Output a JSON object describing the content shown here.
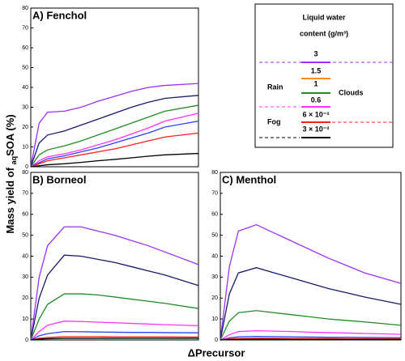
{
  "y_label": [
    "Mass yield of",
    "aq",
    "SOA (%)"
  ],
  "x_label": "ΔPrecursor",
  "legend": {
    "title": [
      "Liquid water",
      "content (g/m³)"
    ],
    "entries": [
      {
        "label": "3",
        "color": "#9b30ff"
      },
      {
        "label": "1.5",
        "color": "#ff8c1a"
      },
      {
        "label": "1",
        "color": "#228b22"
      },
      {
        "label": "0.6",
        "color": "#ff33ff"
      },
      {
        "label": "6 × 10⁻²",
        "color": "#ff2020"
      },
      {
        "label": "3 × 10⁻²",
        "color": "#000000"
      }
    ],
    "groups": [
      "Rain",
      "Clouds",
      "Fog"
    ]
  },
  "chart_data": [
    {
      "type": "line",
      "title": "A) Fenchol",
      "x": [
        0,
        0.05,
        0.1,
        0.2,
        0.3,
        0.4,
        0.5,
        0.6,
        0.7,
        0.8,
        1
      ],
      "xlim": [
        0,
        1
      ],
      "ylim": [
        0,
        80
      ],
      "yticks": [
        0,
        10,
        20,
        30,
        40,
        50,
        60,
        70,
        80
      ],
      "series": [
        {
          "color": "#9b30ff",
          "values": [
            0,
            22,
            27.5,
            28,
            30,
            33,
            35.5,
            38,
            40,
            41,
            42
          ]
        },
        {
          "color": "#1a1a6e",
          "values": [
            0,
            12,
            16,
            18,
            21,
            24,
            27,
            30,
            32.5,
            34.5,
            36
          ]
        },
        {
          "color": "#228b22",
          "values": [
            0,
            6,
            8.5,
            10.5,
            13,
            16,
            19,
            22,
            25,
            28,
            31
          ]
        },
        {
          "color": "#ff33ff",
          "values": [
            0,
            3,
            5,
            6.5,
            8.5,
            11,
            13.5,
            16.5,
            19.5,
            23,
            27
          ]
        },
        {
          "color": "#2f3fff",
          "values": [
            0,
            2,
            4,
            5.5,
            7.5,
            9.5,
            12,
            14.5,
            17,
            20,
            23
          ]
        },
        {
          "color": "#ff2020",
          "values": [
            0,
            1.5,
            3,
            4.5,
            6,
            7.5,
            9,
            11,
            13,
            15,
            17
          ]
        },
        {
          "color": "#000000",
          "values": [
            0,
            0.5,
            1,
            1.5,
            2.2,
            3,
            3.7,
            4.5,
            5.3,
            6,
            6.7
          ]
        }
      ]
    },
    {
      "type": "line",
      "title": "B) Borneol",
      "x": [
        0,
        0.05,
        0.1,
        0.2,
        0.3,
        0.4,
        0.5,
        0.6,
        0.7,
        0.8,
        1
      ],
      "xlim": [
        0,
        1
      ],
      "ylim": [
        0,
        80
      ],
      "yticks": [
        0,
        10,
        20,
        30,
        40,
        50,
        60,
        70,
        80
      ],
      "series": [
        {
          "color": "#9b30ff",
          "values": [
            0,
            30,
            45,
            54,
            54,
            52,
            50,
            47.5,
            45,
            42,
            36
          ]
        },
        {
          "color": "#1a1a6e",
          "values": [
            0,
            20,
            31,
            40.5,
            40,
            38.5,
            37,
            35,
            33,
            31,
            26
          ]
        },
        {
          "color": "#228b22",
          "values": [
            0,
            10,
            17,
            22,
            22,
            21.5,
            20.5,
            19.5,
            18.5,
            17.5,
            15
          ]
        },
        {
          "color": "#ff33ff",
          "values": [
            0,
            4,
            7,
            9,
            8.8,
            8.5,
            8.2,
            7.9,
            7.6,
            7.3,
            6.8
          ]
        },
        {
          "color": "#2f3fff",
          "values": [
            0,
            2,
            3,
            4,
            3.9,
            3.8,
            3.7,
            3.6,
            3.6,
            3.5,
            3.4
          ]
        },
        {
          "color": "#ff2020",
          "values": [
            0,
            0.8,
            1.2,
            1.6,
            1.6,
            1.6,
            1.5,
            1.5,
            1.5,
            1.5,
            1.4
          ]
        },
        {
          "color": "#000000",
          "values": [
            0,
            0.4,
            0.6,
            0.8,
            0.8,
            0.8,
            0.8,
            0.8,
            0.8,
            0.8,
            0.8
          ]
        }
      ]
    },
    {
      "type": "line",
      "title": "C) Menthol",
      "x": [
        0,
        0.05,
        0.1,
        0.2,
        0.3,
        0.4,
        0.5,
        0.6,
        0.7,
        0.8,
        1
      ],
      "xlim": [
        0,
        1
      ],
      "ylim": [
        0,
        80
      ],
      "yticks": [
        0,
        10,
        20,
        30,
        40,
        50,
        60,
        70,
        80
      ],
      "series": [
        {
          "color": "#9b30ff",
          "values": [
            0,
            35,
            52,
            55,
            51,
            47,
            43,
            39,
            35.5,
            32,
            27
          ]
        },
        {
          "color": "#1a1a6e",
          "values": [
            0,
            22,
            32,
            34.5,
            32,
            29.5,
            27,
            24.5,
            22.5,
            20.5,
            17
          ]
        },
        {
          "color": "#228b22",
          "values": [
            0,
            9,
            13,
            14,
            13,
            12,
            11,
            10,
            9.3,
            8.6,
            7
          ]
        },
        {
          "color": "#ff33ff",
          "values": [
            0,
            2.5,
            4,
            4.4,
            4.2,
            4,
            3.7,
            3.5,
            3.3,
            3.1,
            2.7
          ]
        },
        {
          "color": "#2f3fff",
          "values": [
            0,
            1,
            1.5,
            1.7,
            1.6,
            1.5,
            1.4,
            1.3,
            1.3,
            1.2,
            1.1
          ]
        },
        {
          "color": "#ff2020",
          "values": [
            0,
            0.5,
            0.7,
            0.8,
            0.8,
            0.7,
            0.7,
            0.7,
            0.6,
            0.6,
            0.6
          ]
        },
        {
          "color": "#000000",
          "values": [
            0,
            0.2,
            0.3,
            0.35,
            0.35,
            0.3,
            0.3,
            0.3,
            0.3,
            0.3,
            0.3
          ]
        }
      ]
    }
  ]
}
